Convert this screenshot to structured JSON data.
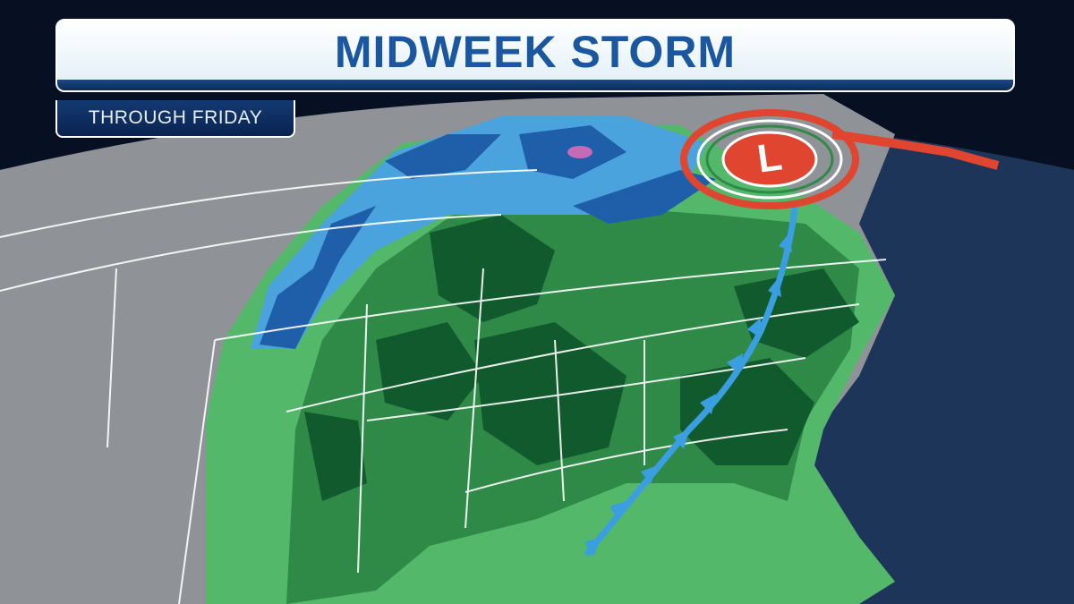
{
  "header": {
    "title": "MIDWEEK STORM",
    "subtitle": "THROUGH FRIDAY"
  },
  "map": {
    "low_pressure_label": "L",
    "legend_colors": {
      "background": "#0b1630",
      "ocean": "#1c3358",
      "land_dry": "#8e9296",
      "rain_light": "#52b86a",
      "rain_moderate": "#2f8a48",
      "rain_heavy": "#10502a",
      "snow_light": "#4aa3dc",
      "snow_heavy": "#1f5ea8",
      "mix": "#c46bb8",
      "cold_front": "#3a9ee0",
      "warm_front": "#e0452f",
      "low_center": "#e0452f"
    },
    "features": [
      "cold-front",
      "warm-front",
      "low-pressure-center",
      "rain-shield",
      "snow-band"
    ]
  }
}
